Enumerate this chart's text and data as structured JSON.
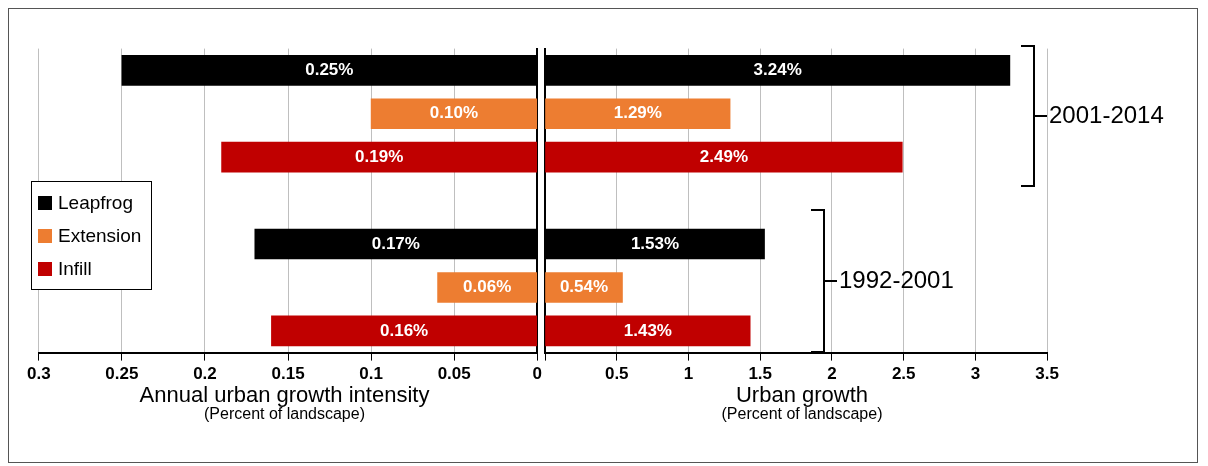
{
  "chart_data": [
    {
      "type": "bar",
      "orientation": "horizontal",
      "xlabel": "Annual urban growth intensity\n(Percent of landscape)",
      "categories": [
        null,
        null,
        null,
        null,
        null,
        null,
        null
      ],
      "xlim": [
        0.3,
        0
      ],
      "xticks": [
        0.3,
        0.25,
        0.2,
        0.15,
        0.1,
        0.05,
        0
      ],
      "grid": "x",
      "legend": "left",
      "series": [
        {
          "name": "Leapfrog",
          "color": "#000000",
          "values": [
            0.25,
            null,
            null,
            null,
            0.17,
            null,
            null
          ],
          "value_labels": [
            "0.25%",
            null,
            null,
            null,
            "0.17%",
            null,
            null
          ]
        },
        {
          "name": "Extension",
          "color": "#ed7d31",
          "values": [
            null,
            0.1,
            null,
            null,
            null,
            0.06,
            null
          ],
          "value_labels": [
            null,
            "0.10%",
            null,
            null,
            null,
            "0.06%",
            null
          ]
        },
        {
          "name": "Infill",
          "color": "#c00000",
          "values": [
            null,
            null,
            0.19,
            null,
            null,
            null,
            0.16
          ],
          "value_labels": [
            null,
            null,
            "0.19%",
            null,
            null,
            null,
            "0.16%"
          ]
        }
      ]
    },
    {
      "type": "bar",
      "orientation": "horizontal",
      "xlabel": "Urban growth\n(Percent of landscape)",
      "categories": [
        null,
        null,
        null,
        null,
        null,
        null,
        null
      ],
      "xlim": [
        0,
        3.5
      ],
      "xticks": [
        {
          "value": 0,
          "label": null
        },
        0.5,
        1,
        1.5,
        2,
        2.5,
        3,
        3.5
      ],
      "grid": "x",
      "annotations": [
        "2001-2014",
        "1992-2001"
      ],
      "series": [
        {
          "color": "#000000",
          "values": [
            3.24,
            null,
            null,
            null,
            1.53,
            null,
            null
          ],
          "value_labels": [
            "3.24%",
            null,
            null,
            null,
            "1.53%",
            null,
            null
          ]
        },
        {
          "color": "#ed7d31",
          "values": [
            null,
            1.29,
            null,
            null,
            null,
            0.54,
            null
          ],
          "value_labels": [
            null,
            "1.29%",
            null,
            null,
            null,
            "0.54%",
            null
          ]
        },
        {
          "color": "#c00000",
          "values": [
            null,
            null,
            2.49,
            null,
            null,
            null,
            1.43
          ],
          "value_labels": [
            null,
            null,
            "2.49%",
            null,
            null,
            null,
            "1.43%"
          ]
        }
      ]
    }
  ]
}
